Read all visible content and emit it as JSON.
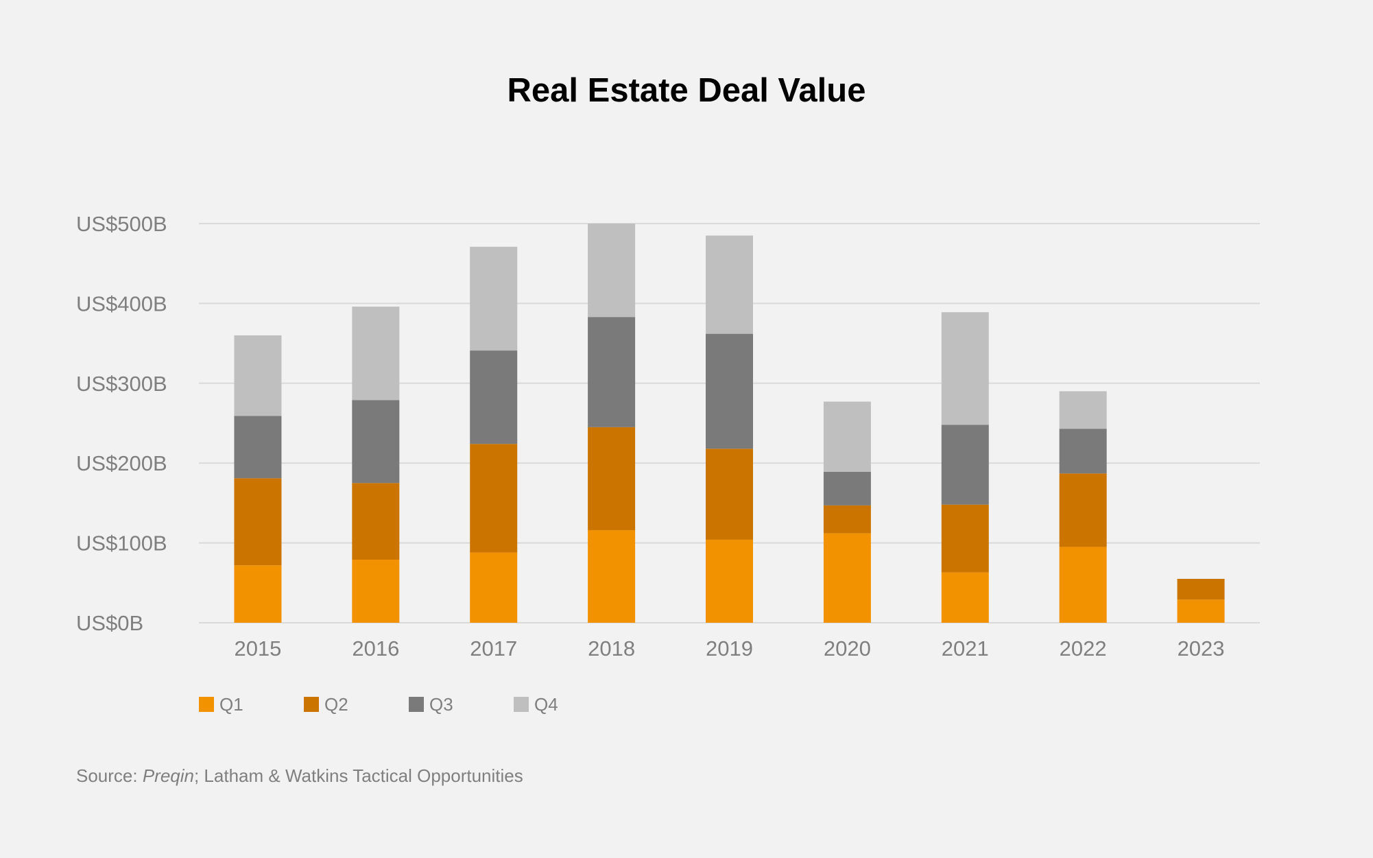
{
  "chart_data": {
    "type": "bar",
    "stacked": true,
    "title": "Real Estate Deal Value",
    "xlabel": "",
    "ylabel": "",
    "categories": [
      "2015",
      "2016",
      "2017",
      "2018",
      "2019",
      "2020",
      "2021",
      "2022",
      "2023"
    ],
    "series": [
      {
        "name": "Q1",
        "color": "#f39200",
        "values": [
          72,
          79,
          88,
          116,
          104,
          112,
          63,
          95,
          29
        ]
      },
      {
        "name": "Q2",
        "color": "#cc7400",
        "values": [
          109,
          96,
          136,
          129,
          114,
          35,
          85,
          92,
          26
        ]
      },
      {
        "name": "Q3",
        "color": "#7a7a7a",
        "values": [
          78,
          104,
          117,
          138,
          144,
          42,
          100,
          56,
          0
        ]
      },
      {
        "name": "Q4",
        "color": "#bfbfbf",
        "values": [
          101,
          117,
          130,
          117,
          123,
          88,
          141,
          47,
          0
        ]
      }
    ],
    "ylim": [
      0,
      500
    ],
    "yticks": [
      0,
      100,
      200,
      300,
      400,
      500
    ],
    "ytick_labels": [
      "US$0B",
      "US$100B",
      "US$200B",
      "US$300B",
      "US$400B",
      "US$500B"
    ],
    "grid": true,
    "legend_position": "bottom-left"
  },
  "source": {
    "prefix": "Source: ",
    "italic": "Preqin",
    "suffix": "; Latham & Watkins Tactical Opportunities"
  }
}
